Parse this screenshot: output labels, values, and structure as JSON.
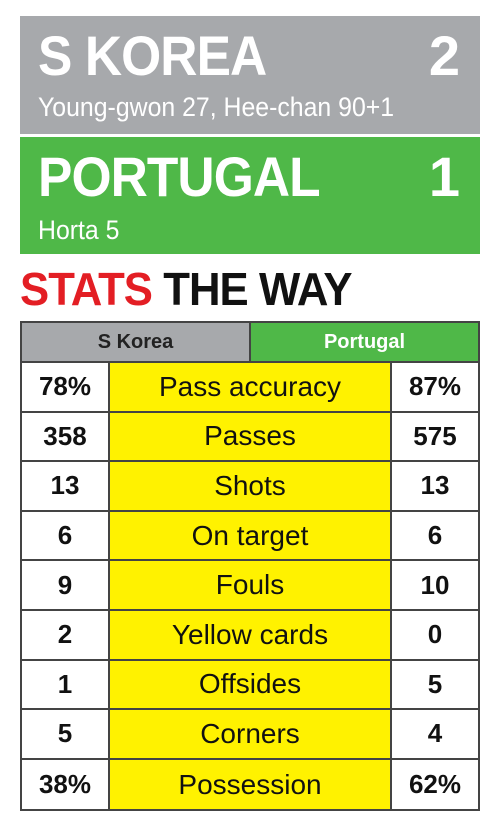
{
  "match": {
    "home": {
      "name": "S KOREA",
      "score": "2",
      "scorers": "Young-gwon 27, Hee-chan 90+1",
      "color": "#a7a9ac"
    },
    "away": {
      "name": "PORTUGAL",
      "score": "1",
      "scorers": "Horta 5",
      "color": "#4fb848"
    }
  },
  "heading": {
    "highlight": "STATS",
    "rest": "THE WAY",
    "highlight_color": "#e31e24"
  },
  "stats": {
    "columns": {
      "home": "S Korea",
      "away": "Portugal"
    },
    "row_color": "#fff200",
    "rows": [
      {
        "label": "Pass accuracy",
        "home": "78%",
        "away": "87%"
      },
      {
        "label": "Passes",
        "home": "358",
        "away": "575"
      },
      {
        "label": "Shots",
        "home": "13",
        "away": "13"
      },
      {
        "label": "On target",
        "home": "6",
        "away": "6"
      },
      {
        "label": "Fouls",
        "home": "9",
        "away": "10"
      },
      {
        "label": "Yellow cards",
        "home": "2",
        "away": "0"
      },
      {
        "label": "Offsides",
        "home": "1",
        "away": "5"
      },
      {
        "label": "Corners",
        "home": "5",
        "away": "4"
      },
      {
        "label": "Possession",
        "home": "38%",
        "away": "62%"
      }
    ]
  }
}
